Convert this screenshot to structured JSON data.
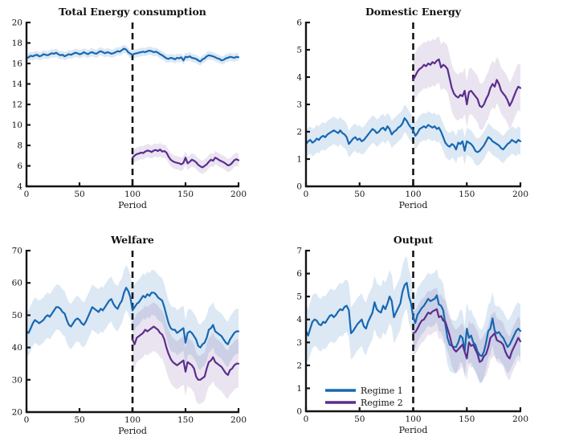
{
  "figure": {
    "background": "#ffffff"
  },
  "colors": {
    "regime1": "#1668b2",
    "regime2": "#5b2d8e",
    "axis": "#141414",
    "regime1_band": "rgba(22,104,178,0.15)",
    "regime2_band": "rgba(91,45,142,0.13)"
  },
  "chart_data": [
    {
      "type": "line",
      "title": "Total Energy consumption",
      "xlabel": "Period",
      "xlim": [
        0,
        200
      ],
      "ylim": [
        4,
        20
      ],
      "xticks": [
        0,
        50,
        100,
        150,
        200
      ],
      "yticks": [
        4,
        6,
        8,
        10,
        12,
        14,
        16,
        18,
        20
      ],
      "vline_x": 100,
      "grid": false,
      "legend": null,
      "series": [
        {
          "name": "Regime 1",
          "color": "#1668b2",
          "band_color": "rgba(22,104,178,0.15)",
          "x_start": 0,
          "x_step": 2,
          "band_halfwidth": 0.4,
          "y": [
            16.5,
            16.6,
            16.75,
            16.7,
            16.8,
            16.85,
            16.7,
            16.75,
            16.9,
            16.85,
            16.8,
            16.9,
            17.0,
            16.95,
            17.05,
            16.9,
            16.8,
            16.85,
            16.7,
            16.8,
            16.9,
            16.85,
            16.95,
            17.05,
            17.0,
            16.9,
            16.95,
            17.1,
            17.0,
            16.9,
            17.05,
            17.1,
            17.0,
            16.95,
            17.1,
            17.2,
            17.1,
            17.0,
            17.1,
            17.05,
            16.95,
            17.0,
            17.1,
            17.2,
            17.15,
            17.3,
            17.45,
            17.35,
            17.1,
            16.95,
            16.85,
            16.95,
            17.0,
            17.05,
            17.1,
            17.15,
            17.1,
            17.2,
            17.25,
            17.2,
            17.1,
            17.15,
            17.05,
            16.9,
            16.8,
            16.65,
            16.5,
            16.45,
            16.55,
            16.5,
            16.4,
            16.55,
            16.5,
            16.6,
            16.3,
            16.65,
            16.6,
            16.7,
            16.55,
            16.5,
            16.45,
            16.3,
            16.2,
            16.4,
            16.5,
            16.7,
            16.8,
            16.75,
            16.7,
            16.6,
            16.5,
            16.45,
            16.3,
            16.35,
            16.5,
            16.55,
            16.65,
            16.6,
            16.55,
            16.65,
            16.6
          ]
        },
        {
          "name": "Regime 2",
          "color": "#5b2d8e",
          "band_color": "rgba(91,45,142,0.13)",
          "x_start": 100,
          "x_step": 2,
          "band_halfwidth": 0.65,
          "y": [
            6.8,
            7.0,
            7.15,
            7.2,
            7.3,
            7.25,
            7.4,
            7.5,
            7.45,
            7.35,
            7.5,
            7.55,
            7.45,
            7.6,
            7.4,
            7.45,
            7.3,
            6.9,
            6.6,
            6.45,
            6.35,
            6.3,
            6.25,
            6.15,
            6.3,
            6.8,
            6.25,
            6.4,
            6.6,
            6.5,
            6.35,
            6.1,
            5.95,
            5.85,
            6.0,
            6.15,
            6.4,
            6.6,
            6.5,
            6.8,
            6.7,
            6.55,
            6.45,
            6.35,
            6.2,
            6.05,
            6.1,
            6.3,
            6.55,
            6.65,
            6.55
          ]
        }
      ]
    },
    {
      "type": "line",
      "title": "Domestic Energy",
      "xlabel": "Period",
      "xlim": [
        0,
        200
      ],
      "ylim": [
        0,
        6
      ],
      "xticks": [
        0,
        50,
        100,
        150,
        200
      ],
      "yticks": [
        0,
        1,
        2,
        3,
        4,
        5,
        6
      ],
      "vline_x": 100,
      "grid": false,
      "legend": null,
      "series": [
        {
          "name": "Regime 1",
          "color": "#1668b2",
          "band_color": "rgba(22,104,178,0.15)",
          "x_start": 0,
          "x_step": 2,
          "band_halfwidth": 0.5,
          "y": [
            1.55,
            1.65,
            1.7,
            1.6,
            1.65,
            1.75,
            1.7,
            1.8,
            1.85,
            1.8,
            1.9,
            1.95,
            2.0,
            2.05,
            2.0,
            1.95,
            2.05,
            1.95,
            1.9,
            1.8,
            1.55,
            1.65,
            1.75,
            1.8,
            1.7,
            1.75,
            1.65,
            1.7,
            1.8,
            1.9,
            2.0,
            2.1,
            2.05,
            1.95,
            2.0,
            2.1,
            2.15,
            2.05,
            2.2,
            2.1,
            1.9,
            2.0,
            2.05,
            2.15,
            2.2,
            2.3,
            2.5,
            2.4,
            2.25,
            2.15,
            2.05,
            1.85,
            1.95,
            2.1,
            2.15,
            2.2,
            2.15,
            2.25,
            2.2,
            2.15,
            2.2,
            2.1,
            2.15,
            2.0,
            1.8,
            1.6,
            1.5,
            1.45,
            1.55,
            1.5,
            1.35,
            1.6,
            1.55,
            1.65,
            1.3,
            1.65,
            1.6,
            1.55,
            1.45,
            1.3,
            1.25,
            1.3,
            1.4,
            1.5,
            1.65,
            1.8,
            1.75,
            1.65,
            1.6,
            1.55,
            1.5,
            1.4,
            1.35,
            1.45,
            1.55,
            1.6,
            1.7,
            1.65,
            1.6,
            1.7,
            1.65
          ]
        },
        {
          "name": "Regime 2",
          "color": "#5b2d8e",
          "band_color": "rgba(91,45,142,0.13)",
          "x_start": 100,
          "x_step": 2,
          "band_halfwidth": 0.85,
          "y": [
            3.9,
            4.05,
            4.2,
            4.3,
            4.35,
            4.45,
            4.4,
            4.5,
            4.45,
            4.55,
            4.5,
            4.6,
            4.65,
            4.35,
            4.45,
            4.4,
            4.3,
            3.95,
            3.6,
            3.4,
            3.3,
            3.25,
            3.35,
            3.3,
            3.5,
            3.0,
            3.45,
            3.5,
            3.4,
            3.3,
            3.2,
            2.95,
            2.9,
            3.0,
            3.2,
            3.35,
            3.6,
            3.75,
            3.65,
            3.9,
            3.75,
            3.5,
            3.4,
            3.3,
            3.15,
            2.95,
            3.1,
            3.3,
            3.5,
            3.65,
            3.6
          ]
        }
      ]
    },
    {
      "type": "line",
      "title": "Welfare",
      "xlabel": "Period",
      "xlim": [
        0,
        200
      ],
      "ylim": [
        20,
        70
      ],
      "xticks": [
        0,
        50,
        100,
        150,
        200
      ],
      "yticks": [
        20,
        30,
        40,
        50,
        60,
        70
      ],
      "vline_x": 100,
      "grid": false,
      "legend": null,
      "series": [
        {
          "name": "Regime 1",
          "color": "#1668b2",
          "band_color": "rgba(22,104,178,0.15)",
          "x_start": 0,
          "x_step": 2,
          "band_halfwidth": 7,
          "y": [
            45,
            44.5,
            46,
            47.5,
            48.5,
            48,
            47.5,
            48,
            48.5,
            49.5,
            50,
            49.5,
            50.5,
            51.5,
            52.5,
            52.5,
            52,
            51,
            50.5,
            48.5,
            47,
            46.5,
            47.5,
            48.5,
            49,
            48.5,
            47.5,
            47,
            48,
            49.5,
            51,
            52.5,
            52,
            51.5,
            51,
            52,
            51.5,
            52.5,
            53.5,
            54.5,
            55,
            53.5,
            52.5,
            52,
            53.5,
            54.5,
            57,
            58.5,
            57.5,
            55.5,
            51.5,
            52.5,
            53.5,
            54,
            55,
            56,
            55.5,
            56.5,
            56,
            57,
            57,
            56.5,
            55.5,
            55,
            54.5,
            52.5,
            50,
            47.5,
            46,
            45.5,
            45.5,
            44.5,
            45,
            45.5,
            46,
            41.5,
            44.5,
            45,
            44.5,
            43.5,
            42.5,
            40.5,
            40,
            41,
            41.5,
            43,
            45.5,
            46,
            47,
            45,
            44.5,
            44,
            43.5,
            42.5,
            41.5,
            41,
            42.5,
            43.5,
            44.5,
            45,
            45
          ]
        },
        {
          "name": "Regime 2",
          "color": "#5b2d8e",
          "band_color": "rgba(91,45,142,0.13)",
          "x_start": 100,
          "x_step": 2,
          "band_halfwidth": 7.5,
          "y": [
            42.5,
            41.0,
            43.0,
            43.5,
            44.0,
            44.5,
            45.5,
            45.0,
            45.5,
            46.0,
            46.5,
            46.0,
            45.5,
            44.5,
            44.0,
            42.5,
            40.0,
            38.0,
            36.5,
            35.5,
            35.0,
            34.5,
            35.0,
            35.5,
            36.0,
            32.5,
            35.5,
            35.0,
            34.5,
            33.5,
            31.0,
            30.0,
            30.0,
            30.5,
            31.0,
            33.5,
            35.5,
            36.0,
            37.0,
            35.5,
            35.0,
            34.5,
            34.0,
            33.0,
            32.0,
            31.5,
            33.0,
            33.5,
            34.5,
            35.0,
            35.0
          ]
        }
      ]
    },
    {
      "type": "line",
      "title": "Output",
      "xlabel": "Period",
      "xlim": [
        0,
        200
      ],
      "ylim": [
        0,
        7
      ],
      "xticks": [
        0,
        50,
        100,
        150,
        200
      ],
      "yticks": [
        0,
        1,
        2,
        3,
        4,
        5,
        6,
        7
      ],
      "vline_x": 100,
      "grid": false,
      "legend": {
        "entries": [
          "Regime 1",
          "Regime 2"
        ],
        "position": "lower-left"
      },
      "series": [
        {
          "name": "Regime 1",
          "color": "#1668b2",
          "band_color": "rgba(22,104,178,0.15)",
          "x_start": 0,
          "x_step": 2,
          "band_halfwidth": 1.15,
          "y": [
            3.5,
            3.3,
            3.6,
            3.9,
            4.0,
            3.95,
            3.8,
            3.75,
            3.9,
            3.85,
            4.0,
            4.15,
            4.2,
            4.1,
            4.2,
            4.35,
            4.45,
            4.4,
            4.55,
            4.6,
            4.4,
            3.4,
            3.5,
            3.65,
            3.8,
            3.9,
            4.0,
            3.7,
            3.6,
            3.9,
            4.1,
            4.3,
            4.75,
            4.45,
            4.35,
            4.3,
            4.6,
            4.45,
            4.7,
            5.0,
            4.8,
            4.1,
            4.3,
            4.5,
            4.7,
            5.2,
            5.5,
            5.6,
            5.0,
            4.7,
            4.1,
            3.85,
            4.2,
            4.35,
            4.5,
            4.6,
            4.75,
            4.9,
            4.8,
            4.85,
            4.9,
            5.05,
            4.65,
            4.6,
            4.4,
            3.8,
            3.2,
            2.9,
            2.85,
            2.8,
            2.8,
            3.0,
            3.3,
            3.2,
            2.6,
            3.6,
            3.2,
            3.3,
            3.0,
            2.9,
            2.6,
            2.45,
            2.4,
            2.6,
            3.0,
            3.5,
            3.6,
            4.05,
            3.5,
            3.4,
            3.45,
            3.3,
            3.2,
            3.0,
            2.8,
            2.9,
            3.1,
            3.3,
            3.5,
            3.6,
            3.5
          ]
        },
        {
          "name": "Regime 2",
          "color": "#5b2d8e",
          "band_color": "rgba(91,45,142,0.13)",
          "x_start": 100,
          "x_step": 2,
          "band_halfwidth": 0.95,
          "y": [
            3.4,
            3.45,
            3.6,
            3.8,
            3.95,
            4.0,
            4.15,
            4.3,
            4.25,
            4.35,
            4.4,
            4.45,
            4.1,
            4.15,
            3.95,
            3.9,
            3.6,
            3.3,
            2.9,
            2.7,
            2.6,
            2.7,
            2.8,
            2.9,
            2.6,
            2.3,
            3.0,
            2.85,
            2.9,
            2.7,
            2.5,
            2.15,
            2.2,
            2.4,
            2.5,
            2.8,
            3.2,
            3.3,
            3.4,
            3.1,
            3.05,
            3.0,
            2.9,
            2.6,
            2.4,
            2.3,
            2.6,
            2.8,
            3.0,
            3.2,
            3.05
          ]
        }
      ]
    }
  ]
}
